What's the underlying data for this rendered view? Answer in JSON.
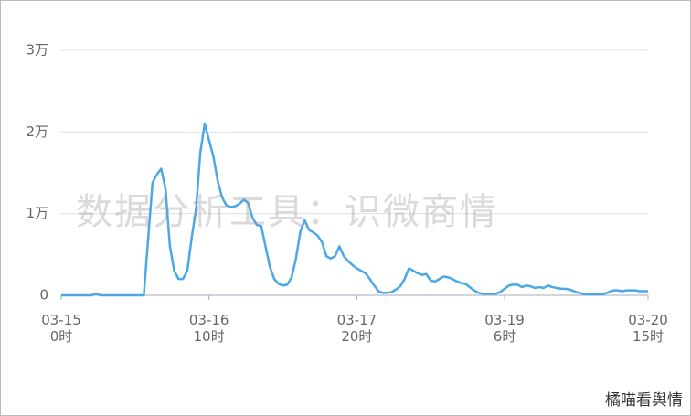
{
  "chart_data": {
    "type": "line",
    "x": [
      0,
      1,
      2,
      3,
      4,
      5,
      6,
      7,
      8,
      9,
      10,
      11,
      12,
      13,
      14,
      15,
      16,
      17,
      18,
      19,
      20,
      21,
      22,
      23,
      24,
      25,
      26,
      27,
      28,
      29,
      30,
      31,
      32,
      33,
      34,
      35,
      36,
      37,
      38,
      39,
      40,
      41,
      42,
      43,
      44,
      45,
      46,
      47,
      48,
      49,
      50,
      51,
      52,
      53,
      54,
      55,
      56,
      57,
      58,
      59,
      60,
      61,
      62,
      63,
      64,
      65,
      66,
      67,
      68,
      69,
      70,
      71,
      72,
      73,
      74,
      75,
      76,
      77,
      78,
      79,
      80,
      81,
      82,
      83,
      84,
      85,
      86,
      87,
      88,
      89,
      90,
      91,
      92,
      93,
      94,
      95,
      96,
      97,
      98,
      99,
      100,
      101,
      102,
      103,
      104,
      105,
      106,
      107,
      108,
      109,
      110,
      111,
      112,
      113,
      114,
      115,
      116,
      117,
      118,
      119,
      120,
      121,
      122,
      123,
      124,
      125,
      126,
      127,
      128,
      129,
      130,
      131,
      132,
      133,
      134,
      135
    ],
    "series": [
      {
        "color": "#4aa8e8",
        "values": [
          0,
          0,
          0,
          0,
          0,
          0,
          0,
          0,
          200,
          0,
          0,
          0,
          0,
          0,
          0,
          0,
          0,
          0,
          0,
          0,
          7000,
          13800,
          14800,
          15500,
          13000,
          6000,
          3000,
          2000,
          2000,
          3000,
          7000,
          10500,
          17500,
          21000,
          19000,
          17000,
          14000,
          12000,
          11000,
          10800,
          10900,
          11200,
          11700,
          11300,
          9500,
          8600,
          8500,
          6000,
          3500,
          2000,
          1400,
          1200,
          1300,
          2200,
          4500,
          7800,
          9200,
          8000,
          7700,
          7300,
          6500,
          4800,
          4500,
          4800,
          6000,
          4800,
          4200,
          3700,
          3300,
          3000,
          2700,
          2000,
          1200,
          500,
          300,
          300,
          400,
          700,
          1100,
          2000,
          3300,
          3000,
          2700,
          2500,
          2600,
          1800,
          1700,
          2000,
          2300,
          2200,
          2000,
          1700,
          1500,
          1400,
          1000,
          600,
          300,
          200,
          200,
          200,
          200,
          400,
          800,
          1200,
          1300,
          1300,
          1000,
          1200,
          1100,
          900,
          1000,
          900,
          1200,
          1000,
          900,
          800,
          800,
          700,
          500,
          300,
          200,
          100,
          100,
          100,
          100,
          200,
          400,
          600,
          600,
          500,
          600,
          600,
          600,
          500,
          500,
          500
        ]
      }
    ],
    "xlim": [
      0,
      135
    ],
    "xticks": [
      {
        "value": 0,
        "label": "03-15\n0时"
      },
      {
        "value": 34,
        "label": "03-16\n10时"
      },
      {
        "value": 68,
        "label": "03-17\n20时"
      },
      {
        "value": 102,
        "label": "03-19\n6时"
      },
      {
        "value": 135,
        "label": "03-20\n15时"
      }
    ],
    "ylim": [
      0,
      30000
    ],
    "yticks": [
      0,
      {
        "value": 10000,
        "label": "1万"
      },
      {
        "value": 20000,
        "label": "2万"
      },
      {
        "value": 30000,
        "label": "3万"
      }
    ],
    "grid": true,
    "annotations": [
      "数据分析工具：识微商情",
      "橘喵看舆情"
    ]
  }
}
